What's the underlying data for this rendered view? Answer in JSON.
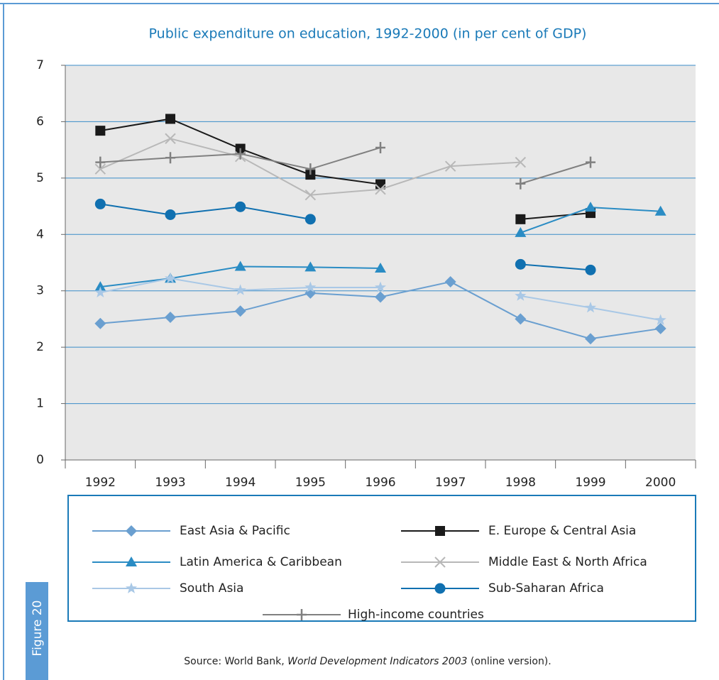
{
  "chart_data": {
    "type": "line",
    "title": "Public expenditure on education, 1992-2000 (in per cent  of GDP)",
    "figure_label": "Figure 20",
    "source": [
      "Source: World Bank, ",
      "World Development Indicators 2003",
      " (online version)."
    ],
    "categories": [
      "1992",
      "1993",
      "1994",
      "1995",
      "1996",
      "1997",
      "1998",
      "1999",
      "2000"
    ],
    "ylim": [
      0,
      7
    ],
    "yticks": [
      0,
      1,
      2,
      3,
      4,
      5,
      6,
      7
    ],
    "grid": true,
    "series": [
      {
        "name": "East Asia & Pacific",
        "color": "#6a9fd0",
        "marker": "diamond",
        "values": [
          2.42,
          2.53,
          2.64,
          2.96,
          2.89,
          3.16,
          2.5,
          2.15,
          2.33
        ]
      },
      {
        "name": "E. Europe & Central Asia",
        "color": "#1a1a1a",
        "marker": "square",
        "values": [
          5.84,
          6.05,
          5.52,
          5.06,
          4.89,
          null,
          4.27,
          4.38,
          null
        ]
      },
      {
        "name": "Latin America & Caribbean",
        "color": "#2a8cc4",
        "marker": "triangle",
        "values": [
          3.07,
          3.22,
          3.43,
          3.42,
          3.4,
          null,
          4.03,
          4.48,
          4.41
        ]
      },
      {
        "name": "Middle East & North Africa",
        "color": "#b8b8b8",
        "marker": "x",
        "values": [
          5.16,
          5.7,
          5.38,
          4.7,
          4.8,
          5.21,
          5.28,
          null,
          null
        ]
      },
      {
        "name": "South Asia",
        "color": "#a9c8e6",
        "marker": "star",
        "values": [
          2.97,
          3.22,
          3.01,
          3.06,
          3.06,
          null,
          2.91,
          2.7,
          2.48
        ]
      },
      {
        "name": "Sub-Saharan Africa",
        "color": "#1070b0",
        "marker": "circle",
        "values": [
          4.54,
          4.35,
          4.49,
          4.27,
          null,
          null,
          3.47,
          3.37,
          null
        ]
      },
      {
        "name": "High-income countries",
        "color": "#808080",
        "marker": "plus",
        "values": [
          5.28,
          5.36,
          5.43,
          5.16,
          5.54,
          null,
          4.9,
          5.28,
          null
        ]
      }
    ]
  }
}
